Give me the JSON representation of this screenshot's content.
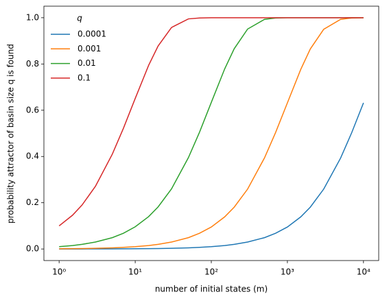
{
  "chart_data": {
    "type": "line",
    "xlabel": "number of initial states (m)",
    "ylabel": "probability attractor of basin size q is found",
    "legend_title": "q",
    "legend_loc": "upper left",
    "xscale": "log",
    "x": [
      1,
      1.5,
      2,
      3,
      5,
      7,
      10,
      15,
      20,
      30,
      50,
      70,
      100,
      150,
      200,
      300,
      500,
      700,
      1000,
      1500,
      2000,
      3000,
      5000,
      7000,
      10000
    ],
    "series": [
      {
        "name": "0.0001",
        "color": "#1f77b4",
        "values": [
          0.0001,
          0.00015,
          0.0002,
          0.0003,
          0.0005,
          0.0007,
          0.001,
          0.0015,
          0.002,
          0.003,
          0.005,
          0.007,
          0.01,
          0.015,
          0.02,
          0.03,
          0.049,
          0.068,
          0.095,
          0.139,
          0.181,
          0.259,
          0.393,
          0.503,
          0.632
        ]
      },
      {
        "name": "0.001",
        "color": "#ff7f0e",
        "values": [
          0.001,
          0.0015,
          0.002,
          0.003,
          0.005,
          0.007,
          0.01,
          0.015,
          0.02,
          0.03,
          0.049,
          0.068,
          0.095,
          0.139,
          0.181,
          0.259,
          0.394,
          0.504,
          0.632,
          0.777,
          0.865,
          0.95,
          0.993,
          0.999,
          1.0
        ]
      },
      {
        "name": "0.01",
        "color": "#2ca02c",
        "values": [
          0.01,
          0.015,
          0.02,
          0.03,
          0.049,
          0.068,
          0.096,
          0.14,
          0.182,
          0.26,
          0.395,
          0.505,
          0.634,
          0.779,
          0.866,
          0.951,
          0.993,
          0.999,
          1.0,
          1.0,
          1.0,
          1.0,
          1.0,
          1.0,
          1.0
        ]
      },
      {
        "name": "0.1",
        "color": "#d62728",
        "values": [
          0.1,
          0.146,
          0.19,
          0.271,
          0.41,
          0.522,
          0.651,
          0.794,
          0.878,
          0.958,
          0.995,
          0.999,
          1.0,
          1.0,
          1.0,
          1.0,
          1.0,
          1.0,
          1.0,
          1.0,
          1.0,
          1.0,
          1.0,
          1.0,
          1.0
        ]
      }
    ],
    "xlim": [
      0.631,
      15849
    ],
    "ylim": [
      -0.05,
      1.05
    ],
    "xticks": [
      {
        "value": 1,
        "label": "10⁰"
      },
      {
        "value": 10,
        "label": "10¹"
      },
      {
        "value": 100,
        "label": "10²"
      },
      {
        "value": 1000,
        "label": "10³"
      },
      {
        "value": 10000,
        "label": "10⁴"
      }
    ],
    "yticks": [
      {
        "value": 0,
        "label": "0.0"
      },
      {
        "value": 0.2,
        "label": "0.2"
      },
      {
        "value": 0.4,
        "label": "0.4"
      },
      {
        "value": 0.6,
        "label": "0.6"
      },
      {
        "value": 0.8,
        "label": "0.8"
      },
      {
        "value": 1.0,
        "label": "1.0"
      }
    ],
    "grid": false
  }
}
